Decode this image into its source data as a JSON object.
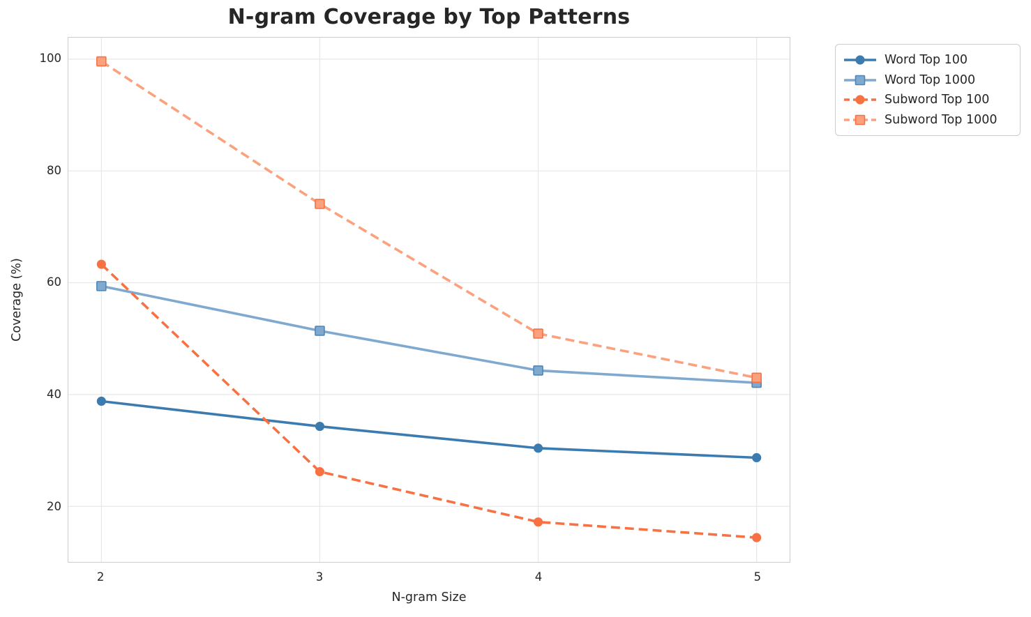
{
  "chart_data": {
    "type": "line",
    "title": "N-gram Coverage by Top Patterns",
    "xlabel": "N-gram Size",
    "ylabel": "Coverage (%)",
    "x": [
      2,
      3,
      4,
      5
    ],
    "xticks": [
      2,
      3,
      4,
      5
    ],
    "yticks": [
      20,
      40,
      60,
      80,
      100
    ],
    "xlim": [
      1.85,
      5.15
    ],
    "ylim": [
      10.05,
      103.85
    ],
    "grid": true,
    "legend_position": "upper-right-outside",
    "series": [
      {
        "name": "Word Top 100",
        "values": [
          38.8,
          34.3,
          30.4,
          28.7
        ],
        "color": "#3C7BAF",
        "marker": "circle",
        "line_style": "solid"
      },
      {
        "name": "Word Top 1000",
        "values": [
          59.4,
          51.4,
          44.3,
          42.1
        ],
        "color": "#7FA9CF",
        "marker": "square",
        "line_style": "solid",
        "marker_edge": "#4E86B8"
      },
      {
        "name": "Subword Top 100",
        "values": [
          63.3,
          26.2,
          17.2,
          14.4
        ],
        "color": "#F87143",
        "marker": "circle",
        "line_style": "dashed"
      },
      {
        "name": "Subword Top 1000",
        "values": [
          99.6,
          74.1,
          50.9,
          43.0
        ],
        "color": "#FBA17E",
        "marker": "square",
        "line_style": "dashed",
        "marker_edge": "#F87143"
      }
    ],
    "colors": {
      "grid": "#E7E7E7",
      "axis_border": "#CCCCCC",
      "text": "#262626",
      "background": "#FFFFFF"
    }
  }
}
